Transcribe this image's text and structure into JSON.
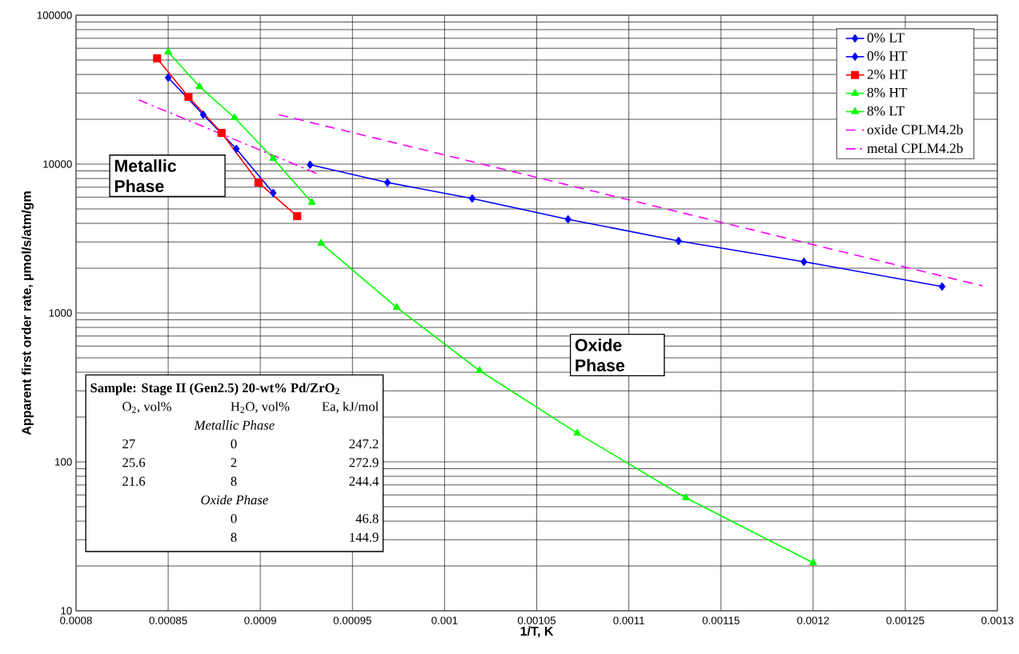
{
  "chart_data": {
    "type": "line",
    "xlabel": "1/T, K",
    "ylabel": "Apparent first order rate, µmol/s/atm/gm",
    "xlim": [
      0.0008,
      0.0013
    ],
    "ylim": [
      10,
      100000
    ],
    "log": "y",
    "grid": true,
    "legend": "top right",
    "xticks": [
      0.0008,
      0.00085,
      0.0009,
      0.00095,
      0.001,
      0.00105,
      0.0011,
      0.00115,
      0.0012,
      0.00125,
      0.0013
    ],
    "yticks": [
      10,
      100,
      1000,
      10000,
      100000
    ],
    "series": [
      {
        "name": "0% LT",
        "color": "#0000ff",
        "marker": "diamond",
        "x": [
          0.000927,
          0.000969,
          0.001015,
          0.001067,
          0.001127,
          0.001195,
          0.00127
        ],
        "values": [
          9900,
          7520,
          5870,
          4260,
          3050,
          2210,
          1505
        ]
      },
      {
        "name": "0% HT",
        "color": "#0000ff",
        "marker": "diamond",
        "x": [
          0.00085,
          0.000869,
          0.000887,
          0.000907
        ],
        "values": [
          38100,
          21500,
          12650,
          6400
        ]
      },
      {
        "name": "2% HT",
        "color": "#ff0000",
        "marker": "square",
        "x": [
          0.000844,
          0.000861,
          0.000879,
          0.000899,
          0.00092
        ],
        "values": [
          51300,
          28300,
          16200,
          7520,
          4470
        ]
      },
      {
        "name": "8% HT",
        "color": "#00ff00",
        "marker": "triangle",
        "x": [
          0.00085,
          0.000867,
          0.000886,
          0.000907,
          0.000928
        ],
        "values": [
          56600,
          33200,
          20500,
          10900,
          5520
        ]
      },
      {
        "name": "8% LT",
        "color": "#00ff00",
        "marker": "triangle",
        "x": [
          0.000933,
          0.000974,
          0.001019,
          0.001072,
          0.001131,
          0.0012
        ],
        "values": [
          2940,
          1090,
          410,
          156,
          57.3,
          21.0
        ]
      },
      {
        "name": "oxide CPLM4.2b",
        "color": "#ff00ff",
        "marker": "none",
        "line_style": "dashed",
        "x": [
          0.00091,
          0.001292
        ],
        "values": [
          21500,
          1520
        ]
      },
      {
        "name": "metal CPLM4.2b",
        "color": "#ff00ff",
        "marker": "none",
        "line_style": "dashdot",
        "x": [
          0.000834,
          0.000931
        ],
        "values": [
          27000,
          8620
        ]
      }
    ],
    "annotations": [
      "Metallic Phase",
      "Oxide Phase",
      "Sample:  Stage II (Gen2.5) 20-wt% Pd/ZrO$_{2}$",
      "O$_{2}$, vol%",
      "H$_{2}$O, vol%",
      "Ea, kJ/mol",
      "Metallic Phase",
      "27",
      "0",
      "247.2",
      "25.6",
      "2",
      "272.9",
      "21.6",
      "8",
      "244.4",
      "Oxide Phase",
      "0",
      "46.8",
      "8",
      "144.9"
    ]
  }
}
